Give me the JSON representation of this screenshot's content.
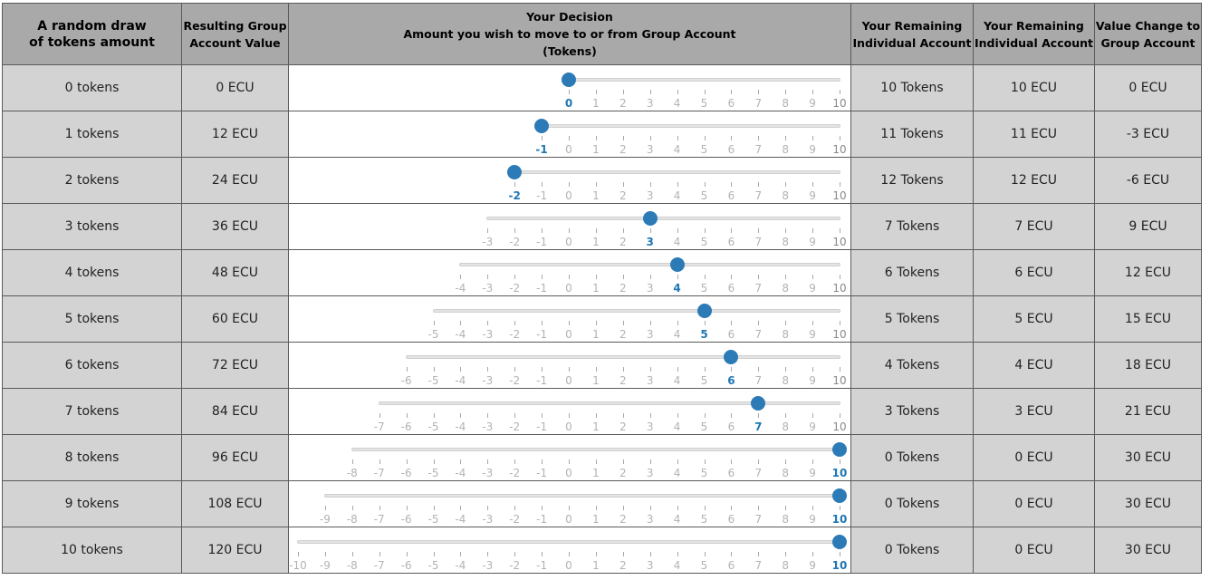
{
  "headers": {
    "draw": [
      "A random draw",
      "of tokens amount"
    ],
    "group_value": [
      "Resulting Group",
      "Account Value"
    ],
    "decision": [
      "Your Decision",
      "Amount you wish to move to or from Group Account",
      "(Tokens)"
    ],
    "remaining_tokens": [
      "Your Remaining",
      "Individual Account"
    ],
    "remaining_ecu": [
      "Your Remaining",
      "Individual Account"
    ],
    "value_change": [
      "Value Change to",
      "Group Account"
    ]
  },
  "rows": [
    {
      "draw": "0 tokens",
      "group_value": "0 ECU",
      "min": 0,
      "max": 10,
      "value": 0,
      "remaining_tokens": "10 Tokens",
      "remaining_ecu": "10 ECU",
      "change": "0 ECU"
    },
    {
      "draw": "1 tokens",
      "group_value": "12 ECU",
      "min": -1,
      "max": 10,
      "value": -1,
      "remaining_tokens": "11 Tokens",
      "remaining_ecu": "11 ECU",
      "change": "-3 ECU"
    },
    {
      "draw": "2 tokens",
      "group_value": "24 ECU",
      "min": -2,
      "max": 10,
      "value": -2,
      "remaining_tokens": "12 Tokens",
      "remaining_ecu": "12 ECU",
      "change": "-6 ECU"
    },
    {
      "draw": "3 tokens",
      "group_value": "36 ECU",
      "min": -3,
      "max": 10,
      "value": 3,
      "remaining_tokens": "7 Tokens",
      "remaining_ecu": "7 ECU",
      "change": "9 ECU"
    },
    {
      "draw": "4 tokens",
      "group_value": "48 ECU",
      "min": -4,
      "max": 10,
      "value": 4,
      "remaining_tokens": "6 Tokens",
      "remaining_ecu": "6 ECU",
      "change": "12 ECU"
    },
    {
      "draw": "5 tokens",
      "group_value": "60 ECU",
      "min": -5,
      "max": 10,
      "value": 5,
      "remaining_tokens": "5 Tokens",
      "remaining_ecu": "5 ECU",
      "change": "15 ECU"
    },
    {
      "draw": "6 tokens",
      "group_value": "72 ECU",
      "min": -6,
      "max": 10,
      "value": 6,
      "remaining_tokens": "4 Tokens",
      "remaining_ecu": "4 ECU",
      "change": "18 ECU"
    },
    {
      "draw": "7 tokens",
      "group_value": "84 ECU",
      "min": -7,
      "max": 10,
      "value": 7,
      "remaining_tokens": "3 Tokens",
      "remaining_ecu": "3 ECU",
      "change": "21 ECU"
    },
    {
      "draw": "8 tokens",
      "group_value": "96 ECU",
      "min": -8,
      "max": 10,
      "value": 10,
      "remaining_tokens": "0 Tokens",
      "remaining_ecu": "0 ECU",
      "change": "30 ECU"
    },
    {
      "draw": "9 tokens",
      "group_value": "108 ECU",
      "min": -9,
      "max": 10,
      "value": 10,
      "remaining_tokens": "0 Tokens",
      "remaining_ecu": "0 ECU",
      "change": "30 ECU"
    },
    {
      "draw": "10 tokens",
      "group_value": "120 ECU",
      "min": -10,
      "max": 10,
      "value": 10,
      "remaining_tokens": "0 Tokens",
      "remaining_ecu": "0 ECU",
      "change": "30 ECU"
    }
  ],
  "colors": {
    "header_bg": "#a9a9a9",
    "cell_bg": "#d3d3d3",
    "accent": "#2c7bb6"
  }
}
